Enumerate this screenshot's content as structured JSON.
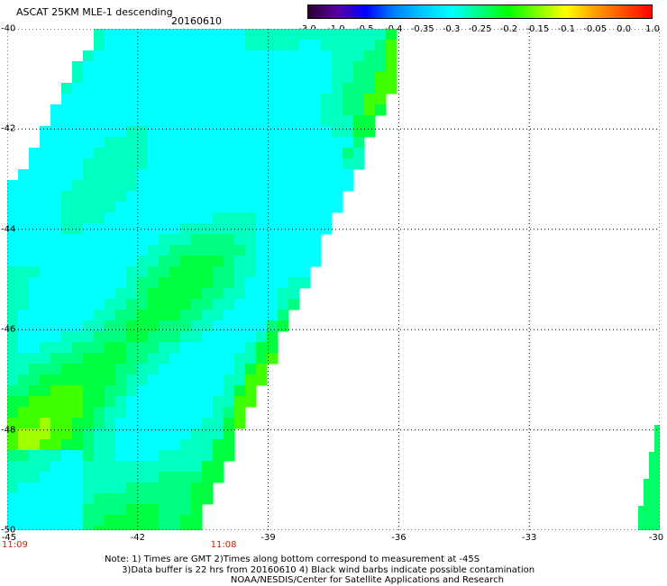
{
  "header": {
    "title": "ASCAT 25KM MLE-1 descending",
    "date": "20160610"
  },
  "colorbar": {
    "labels": [
      "-3.0",
      "-1.0",
      "-0.5",
      "-0.4",
      "-0.35",
      "-0.3",
      "-0.25",
      "-0.2",
      "-0.15",
      "-0.1",
      "-0.05",
      "0.0",
      "1.0"
    ],
    "colors": [
      "#2a0030",
      "#5a00a0",
      "#0000ff",
      "#0080ff",
      "#00c8ff",
      "#00ffff",
      "#00ff80",
      "#00ff00",
      "#80ff00",
      "#ffff00",
      "#ffa000",
      "#ff5000",
      "#ff0000"
    ]
  },
  "map": {
    "lat_labels": [
      "-40",
      "-42",
      "-44",
      "-46",
      "-48",
      "-50"
    ],
    "lon_labels": [
      "-45",
      "-42",
      "-39",
      "-36",
      "-33",
      "-30"
    ],
    "lat_range": [
      -50,
      -40
    ],
    "lon_range": [
      -45,
      -30
    ],
    "time_labels": [
      {
        "text": "11:09",
        "lon": -45
      },
      {
        "text": "11:08",
        "lon": -40.2
      }
    ]
  },
  "notes": {
    "line1": "Note: 1) Times are GMT 2)Times along bottom correspond to measurement at -45S",
    "line2": "      3)Data buffer is 22 hrs from 20160610 4) Black wind barbs indicate possible contamination",
    "line3": "                                            NOAA/NESDIS/Center for Satellite Applications and Research"
  }
}
